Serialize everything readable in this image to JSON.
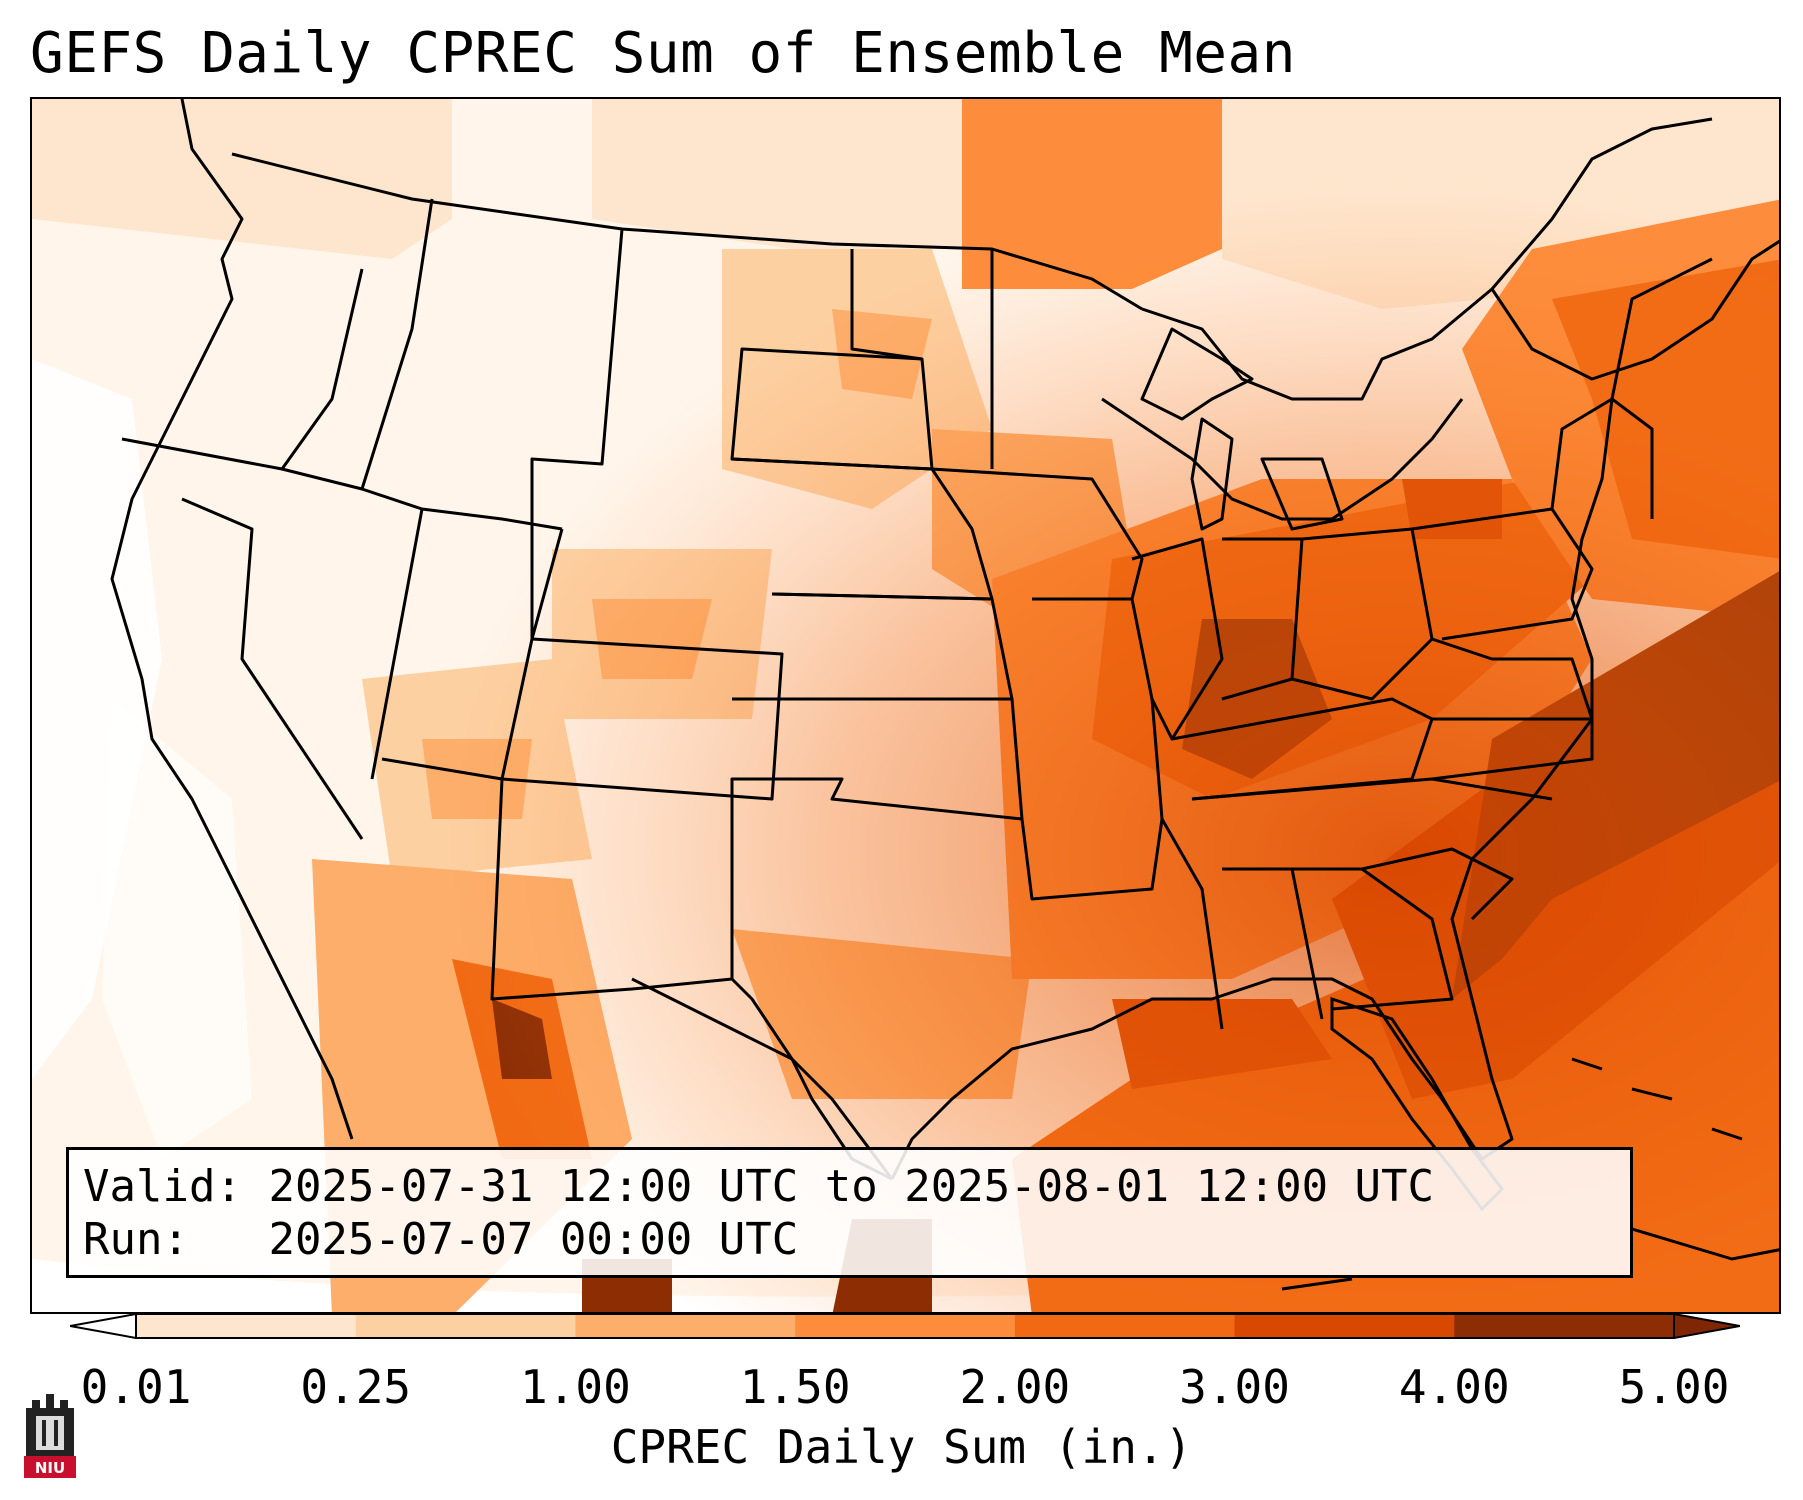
{
  "title": "GEFS Daily CPREC Sum of Ensemble Mean",
  "info": {
    "valid_label": "Valid:",
    "valid_value": "2025-07-31 12:00 UTC to 2025-08-01 12:00 UTC",
    "run_label": "Run:",
    "run_value": "2025-07-07 00:00 UTC"
  },
  "colorbar": {
    "label": "CPREC Daily Sum (in.)",
    "ticks": [
      "0.01",
      "0.25",
      "1.00",
      "1.50",
      "2.00",
      "3.00",
      "4.00",
      "5.00"
    ],
    "colors": [
      "#fff5eb",
      "#fee6ce",
      "#fdd0a2",
      "#fdae6b",
      "#fd8d3c",
      "#f16913",
      "#d94801",
      "#8c2d04"
    ],
    "under_color": "#ffffff",
    "over_color": "#7f2704"
  },
  "map": {
    "region": "CONUS",
    "heavy_axis": "Atlantic coast offshore, Southeast US, Gulf Coast",
    "boundary_color": "#000000"
  },
  "logo": {
    "text": "NIU",
    "icon": "university-tower-logo",
    "color": "#c8102e"
  }
}
